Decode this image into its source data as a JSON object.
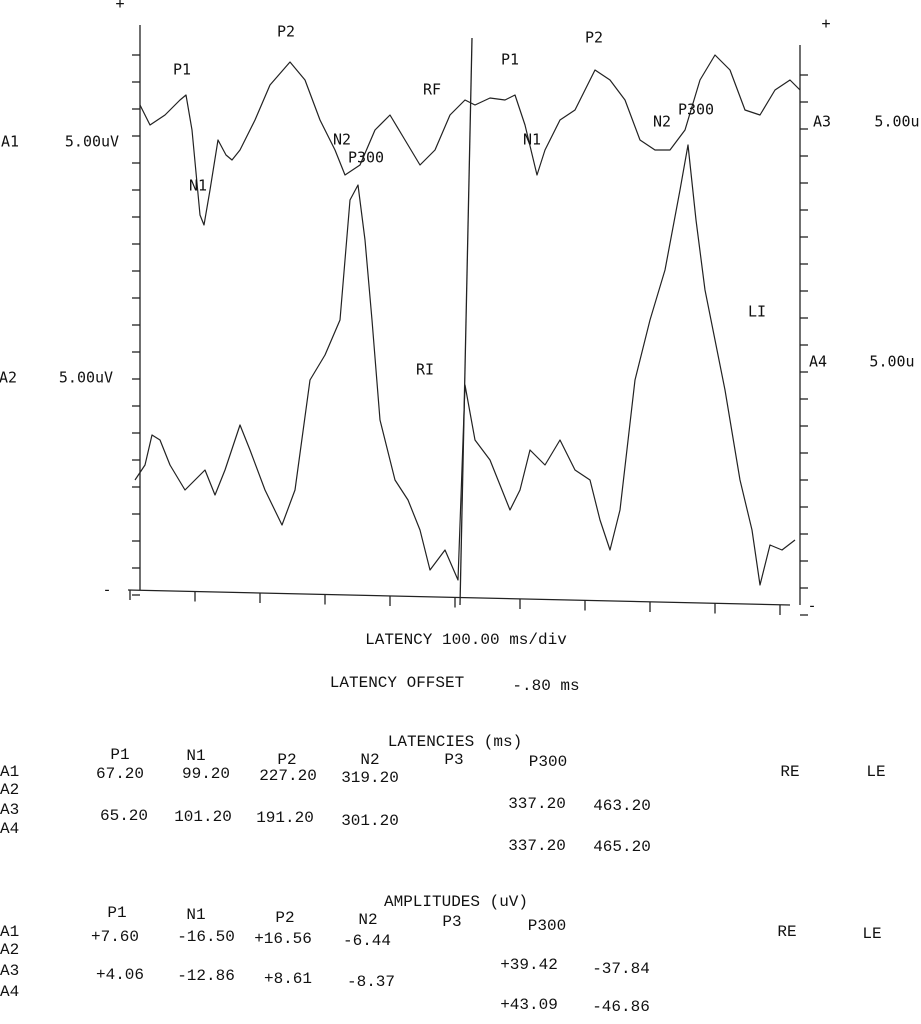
{
  "plot": {
    "labels": [
      "+",
      "+",
      "A1",
      "5.00uV",
      "A2",
      "5.00uV",
      "A3",
      "5.00u",
      "A4",
      "5.00u",
      "P1",
      "P2",
      "N1",
      "N2",
      "P300",
      "RF",
      "P1",
      "P2",
      "N1",
      "N2",
      "P300",
      "RI",
      "LI",
      "-",
      "-"
    ]
  },
  "captions": {
    "latency_div": "LATENCY 100.00 ms/div",
    "offset_label": "LATENCY OFFSET",
    "offset_value": "-.80 ms"
  },
  "latencies": {
    "title": "LATENCIES (ms)",
    "columns": [
      "P1",
      "N1",
      "P2",
      "N2",
      "P3",
      "P300"
    ],
    "side_labels": [
      "RE",
      "LE"
    ],
    "rows": [
      {
        "label": "A1",
        "values": [
          "67.20",
          "99.20",
          "227.20",
          "319.20"
        ]
      },
      {
        "label": "A2",
        "values": [
          "337.20",
          "463.20"
        ]
      },
      {
        "label": "A3",
        "values": [
          "65.20",
          "101.20",
          "191.20",
          "301.20"
        ]
      },
      {
        "label": "A4",
        "values": [
          "337.20",
          "465.20"
        ]
      }
    ]
  },
  "amplitudes": {
    "title": "AMPLITUDES (uV)",
    "columns": [
      "P1",
      "N1",
      "P2",
      "N2",
      "P3",
      "P300"
    ],
    "side_labels": [
      "RE",
      "LE"
    ],
    "rows": [
      {
        "label": "A1",
        "values": [
          "+7.60",
          "-16.50",
          "+16.56",
          "-6.44"
        ]
      },
      {
        "label": "A2",
        "values": [
          "+39.42",
          "-37.84"
        ]
      },
      {
        "label": "A3",
        "values": [
          "+4.06",
          "-12.86",
          "+8.61",
          "-8.37"
        ]
      },
      {
        "label": "A4",
        "values": [
          "+43.09",
          "-46.86"
        ]
      }
    ]
  }
}
